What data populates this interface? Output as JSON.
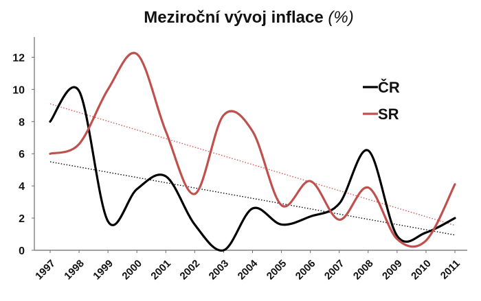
{
  "chart_data": {
    "type": "line",
    "title": "Meziroční vývoj inflace",
    "title_unit": "(%)",
    "xlabel": "",
    "ylabel": "",
    "x": [
      "1997",
      "1998",
      "1999",
      "2000",
      "2001",
      "2002",
      "2003",
      "2004",
      "2005",
      "2006",
      "2007",
      "2008",
      "2009",
      "2010",
      "2011"
    ],
    "yticks": [
      "0",
      "2",
      "4",
      "6",
      "8",
      "10",
      "12"
    ],
    "ylim": [
      0,
      13
    ],
    "grid": false,
    "legend_position": "right",
    "smooth": true,
    "series": [
      {
        "name": "ČR",
        "color": "#000000",
        "values": [
          8.0,
          9.9,
          1.8,
          3.8,
          4.6,
          1.6,
          0.0,
          2.6,
          1.6,
          2.1,
          2.9,
          6.2,
          0.9,
          1.1,
          2.0
        ],
        "trendline": {
          "start": 5.5,
          "end": 0.95,
          "color": "#000000",
          "style": "dotted"
        }
      },
      {
        "name": "SR",
        "color": "#c0504d",
        "values": [
          6.0,
          6.6,
          10.0,
          12.2,
          7.4,
          3.5,
          8.4,
          7.4,
          2.8,
          4.3,
          1.9,
          3.9,
          0.7,
          0.6,
          4.1
        ],
        "trendline": {
          "start": 9.1,
          "end": 1.55,
          "color": "#d9534f",
          "style": "dotted"
        }
      }
    ]
  }
}
